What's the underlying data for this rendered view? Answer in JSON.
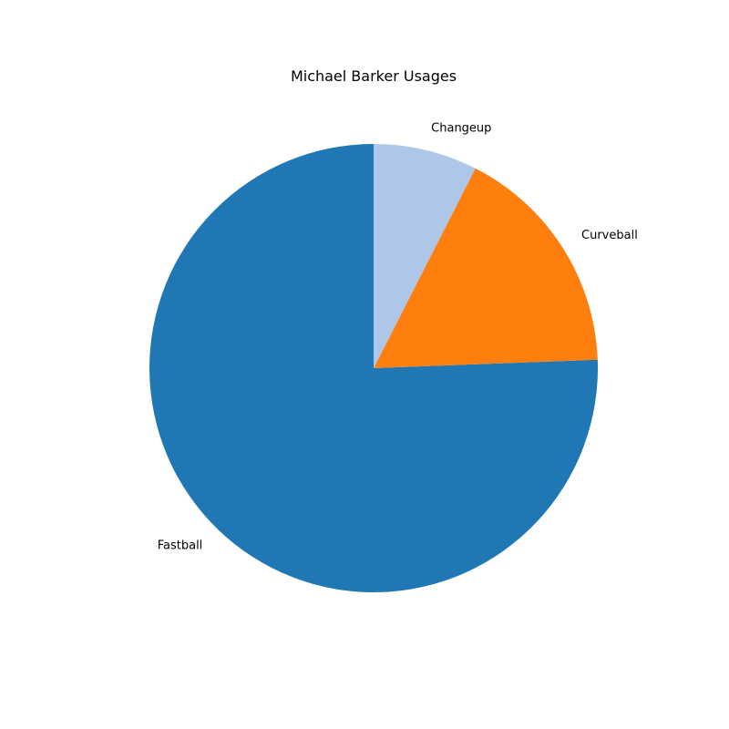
{
  "chart_data": {
    "type": "pie",
    "title": "Michael Barker Usages",
    "categories": [
      "Fastball",
      "Curveball",
      "Changeup"
    ],
    "values": [
      75.6,
      16.9,
      7.5
    ],
    "colors": [
      "#1f77b4",
      "#ff7f0e",
      "#aec7e8"
    ],
    "start_angle_deg": 90,
    "direction": "counterclockwise",
    "legend": "none"
  }
}
